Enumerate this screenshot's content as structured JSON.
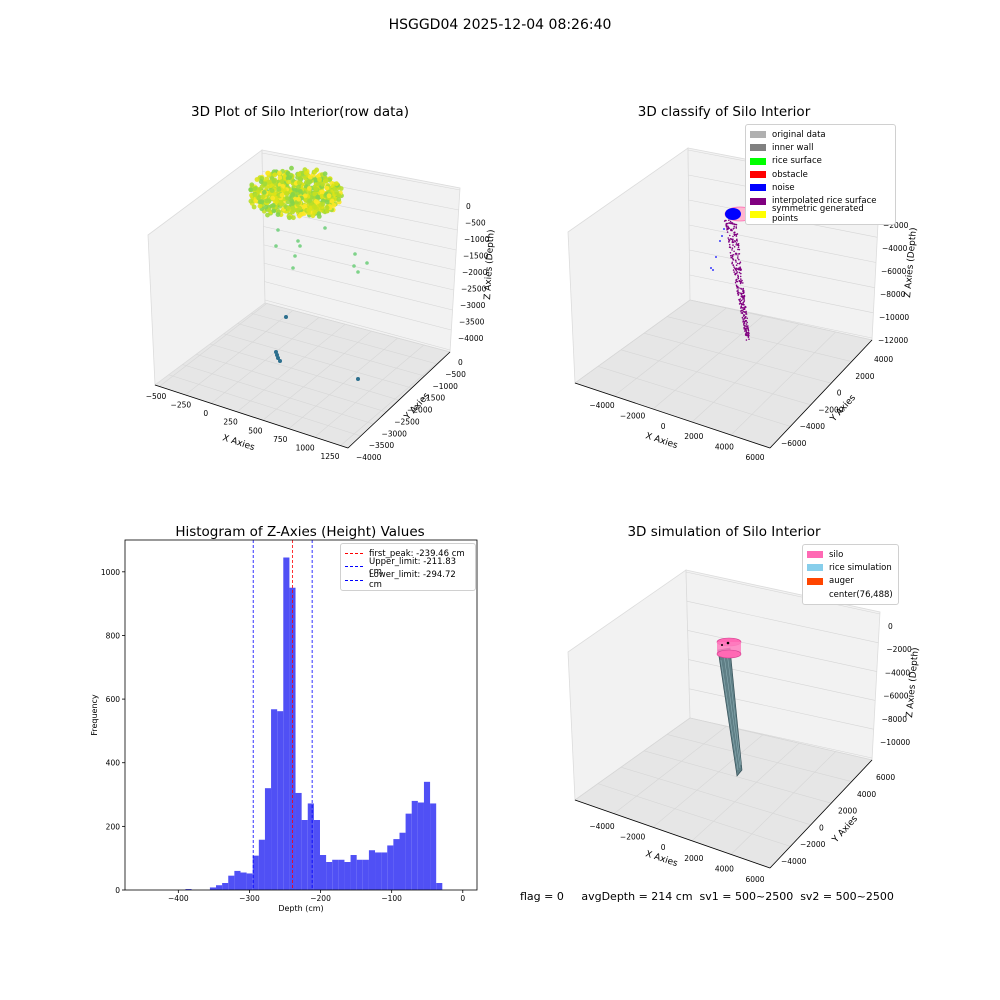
{
  "figure": {
    "title": "HSGGD04 2025-12-04 08:26:40",
    "footer": "flag = 0     avgDepth = 214 cm  sv1 = 500~2500  sv2 = 500~2500"
  },
  "chart_data": [
    {
      "type": "scatter",
      "projection": "3d",
      "title": "3D Plot of Silo Interior(row data)",
      "xlabel": "X Axies",
      "ylabel": "Y Axies",
      "zlabel": "Z Axies (Depth)",
      "x_ticks": [
        "−500",
        "−250",
        "0",
        "250",
        "500",
        "750",
        "1000",
        "1250"
      ],
      "y_ticks": [
        "0",
        "−500",
        "−1000",
        "−1500",
        "−2000",
        "−2500",
        "−3000",
        "−3500",
        "−4000"
      ],
      "z_ticks": [
        "0",
        "−500",
        "−1000",
        "−1500",
        "−2000",
        "−2500",
        "−3000",
        "−3500",
        "−4000"
      ],
      "colormap": "viridis"
    },
    {
      "type": "scatter",
      "projection": "3d",
      "title": "3D classify of Silo Interior",
      "xlabel": "X Axies",
      "ylabel": "Y Axies",
      "zlabel": "Z Axies (Depth)",
      "x_ticks": [
        "−4000",
        "−2000",
        "0",
        "2000",
        "4000",
        "6000"
      ],
      "y_ticks": [
        "4000",
        "2000",
        "0",
        "−2000",
        "−4000",
        "−6000"
      ],
      "z_ticks": [
        "0",
        "−2000",
        "−4000",
        "−6000",
        "−8000",
        "−10000",
        "−12000"
      ],
      "legend_position": "top-right",
      "legend": [
        {
          "name": "original data",
          "color": "#b0b0b0"
        },
        {
          "name": "inner wall",
          "color": "#808080"
        },
        {
          "name": "rice surface",
          "color": "#00ff00"
        },
        {
          "name": "obstacle",
          "color": "#ff0000"
        },
        {
          "name": "noise",
          "color": "#0000ff"
        },
        {
          "name": "interpolated rice surface",
          "color": "#800080"
        },
        {
          "name": "symmetric generated points",
          "color": "#ffff00"
        }
      ]
    },
    {
      "type": "bar",
      "title": "Histogram of Z-Axies (Height) Values",
      "xlabel": "Depth (cm)",
      "ylabel": "Frequency",
      "xlim": [
        -475,
        20
      ],
      "ylim": [
        0,
        1100
      ],
      "x_ticks": [
        "−400",
        "−300",
        "−200",
        "−100",
        "0"
      ],
      "y_ticks": [
        "0",
        "200",
        "400",
        "600",
        "800",
        "1000"
      ],
      "bar_color": "#5050f5",
      "bin_width": 8.6,
      "bin_starts": [
        -390,
        -381.4,
        -372.8,
        -364.2,
        -355.6,
        -347,
        -338.4,
        -329.8,
        -321.2,
        -312.6,
        -304,
        -295.4,
        -286.8,
        -278.2,
        -269.6,
        -261,
        -252.4,
        -243.8,
        -235.2,
        -226.6,
        -218,
        -209.4,
        -200.8,
        -192.2,
        -183.6,
        -175,
        -166.4,
        -157.8,
        -149.2,
        -140.6,
        -132,
        -123.4,
        -114.8,
        -106.2,
        -97.6,
        -89,
        -80.4,
        -71.8,
        -63.2,
        -54.6,
        -46,
        -37.4,
        -28.8,
        -20.2,
        -11.6,
        -3
      ],
      "counts": [
        3,
        0,
        0,
        0,
        8,
        15,
        22,
        45,
        60,
        55,
        52,
        108,
        158,
        320,
        568,
        562,
        1045,
        950,
        305,
        220,
        272,
        220,
        110,
        88,
        95,
        95,
        88,
        110,
        95,
        95,
        125,
        118,
        118,
        140,
        160,
        180,
        240,
        280,
        275,
        340,
        272,
        22,
        0,
        0,
        0,
        0
      ],
      "vlines": [
        {
          "name": "first_peak: -239.46 cm",
          "x": -239.46,
          "color": "#ff0000"
        },
        {
          "name": "Upper_limit: -211.83 cm",
          "x": -211.83,
          "color": "#0000ff"
        },
        {
          "name": "Lower_limit: -294.72 cm",
          "x": -294.72,
          "color": "#0000ff"
        }
      ],
      "legend_position": "top-right"
    },
    {
      "type": "scatter",
      "projection": "3d",
      "title": "3D simulation of Silo Interior",
      "xlabel": "X Axies",
      "ylabel": "Y Axies",
      "zlabel": "Z Axies (Depth)",
      "x_ticks": [
        "−4000",
        "−2000",
        "0",
        "2000",
        "4000",
        "6000"
      ],
      "y_ticks": [
        "6000",
        "4000",
        "2000",
        "0",
        "−2000",
        "−4000"
      ],
      "z_ticks": [
        "0",
        "−2000",
        "−4000",
        "−6000",
        "−8000",
        "−10000"
      ],
      "legend_position": "top-right",
      "legend": [
        {
          "name": "silo",
          "color": "#ff69b4"
        },
        {
          "name": "rice simulation",
          "color": "#87ceeb"
        },
        {
          "name": "auger",
          "color": "#ff4500"
        },
        {
          "name": "center(76,488)",
          "color": ""
        }
      ]
    }
  ]
}
